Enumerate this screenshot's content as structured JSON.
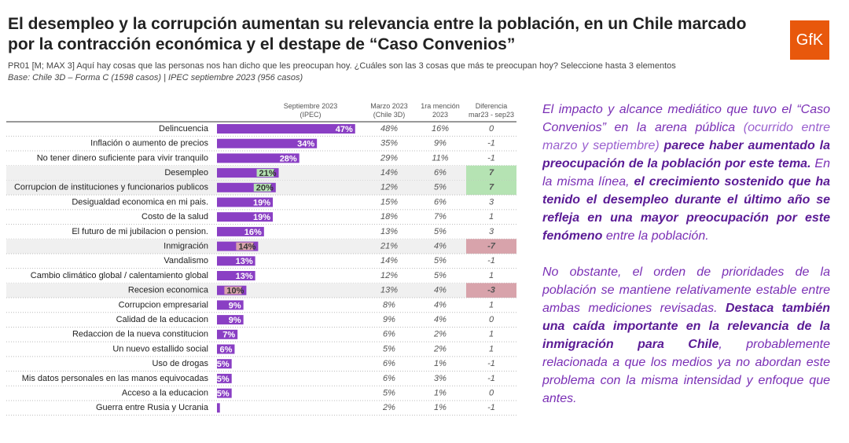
{
  "header": {
    "title": "El desempleo y la corrupción aumentan su relevancia entre la población, en un Chile marcado por la contracción económica y el destape de “Caso Convenios”",
    "logo": "GfK",
    "question": "PR01 [M; MAX 3] Aquí hay cosas que las personas nos han dicho que les preocupan hoy. ¿Cuáles son las 3 cosas que más te preocupan hoy? Seleccione hasta 3 elementos",
    "base": "Base: Chile 3D – Forma C (1598 casos) | IPEC septiembre 2023 (956 casos)"
  },
  "chart_data": {
    "type": "bar",
    "orientation": "horizontal",
    "color": "#8a3fc4",
    "series_label": "Septiembre 2023 (IPEC)",
    "categories": [
      "Delincuencia",
      "Inflación o aumento de precios",
      "No tener dinero suficiente para vivir tranquilo",
      "Desempleo",
      "Corrupcion de instituciones y funcionarios publicos",
      "Desigualdad economica en mi pais.",
      "Costo de la salud",
      "El futuro de mi jubilacion o pension.",
      "Inmigración",
      "Vandalismo",
      "Cambio climático global / calentamiento global",
      "Recesion economica",
      "Corrupcion empresarial",
      "Calidad de la educacion",
      "Redaccion de la nueva constitucion",
      "Un nuevo estallido social",
      "Uso de drogas",
      "Mis datos personales en las manos equivocadas",
      "Acceso a la educacion",
      "Guerra entre Rusia y Ucrania"
    ],
    "values": [
      47,
      34,
      28,
      21,
      20,
      19,
      19,
      16,
      14,
      13,
      13,
      10,
      9,
      9,
      7,
      6,
      5,
      5,
      5,
      1
    ],
    "value_labels": [
      "47%",
      "34%",
      "28%",
      "21%",
      "20%",
      "19%",
      "19%",
      "16%",
      "14%",
      "13%",
      "13%",
      "10%",
      "9%",
      "9%",
      "7%",
      "6%",
      "5%",
      "5%",
      "5%",
      null
    ],
    "xlim": [
      0,
      50
    ],
    "highlight": [
      null,
      null,
      null,
      "#b5e3b3",
      "#b5e3b3",
      null,
      null,
      null,
      "#d8a3ab",
      null,
      null,
      "#d8a3ab",
      null,
      null,
      null,
      null,
      null,
      null,
      null,
      null
    ]
  },
  "table": {
    "columns": [
      "Marzo 2023 (Chile 3D)",
      "1ra mención 2023",
      "Diferencia mar23 - sep23"
    ],
    "rows": [
      [
        "48%",
        "16%",
        "0"
      ],
      [
        "35%",
        "9%",
        "-1"
      ],
      [
        "29%",
        "11%",
        "-1"
      ],
      [
        "14%",
        "6%",
        "7"
      ],
      [
        "12%",
        "5%",
        "7"
      ],
      [
        "15%",
        "6%",
        "3"
      ],
      [
        "18%",
        "7%",
        "1"
      ],
      [
        "13%",
        "5%",
        "3"
      ],
      [
        "21%",
        "4%",
        "-7"
      ],
      [
        "14%",
        "5%",
        "-1"
      ],
      [
        "12%",
        "5%",
        "1"
      ],
      [
        "13%",
        "4%",
        "-3"
      ],
      [
        "8%",
        "4%",
        "1"
      ],
      [
        "9%",
        "4%",
        "0"
      ],
      [
        "6%",
        "2%",
        "1"
      ],
      [
        "5%",
        "2%",
        "1"
      ],
      [
        "6%",
        "1%",
        "-1"
      ],
      [
        "6%",
        "3%",
        "-1"
      ],
      [
        "5%",
        "1%",
        "0"
      ],
      [
        "2%",
        "1%",
        "-1"
      ]
    ]
  },
  "commentary": [
    [
      {
        "text": "El impacto y alcance mediático que tuvo el “Caso Convenios” en la arena pública",
        "bold": false
      },
      {
        "text": " (ocurrido entre marzo y septiembre) ",
        "bold": false,
        "plain": true
      },
      {
        "text": "parece haber aumentado la preocupación de la población por este tema.",
        "bold": true
      },
      {
        "text": " En la misma línea, ",
        "bold": false
      },
      {
        "text": "el crecimiento sostenido que ha tenido el desempleo durante el último año se refleja en una mayor preocupación por este fenómeno",
        "bold": true
      },
      {
        "text": " entre la población.",
        "bold": false
      }
    ],
    [
      {
        "text": "No obstante, el orden de prioridades de la población se mantiene relativamente estable entre ambas mediciones revisadas. ",
        "bold": false
      },
      {
        "text": "Destaca también una caída importante en la relevancia de la inmigración para Chile",
        "bold": true
      },
      {
        "text": ", probablemente relacionada a que los medios ya no abordan este problema con la misma intensidad y enfoque que antes.",
        "bold": false
      }
    ]
  ]
}
